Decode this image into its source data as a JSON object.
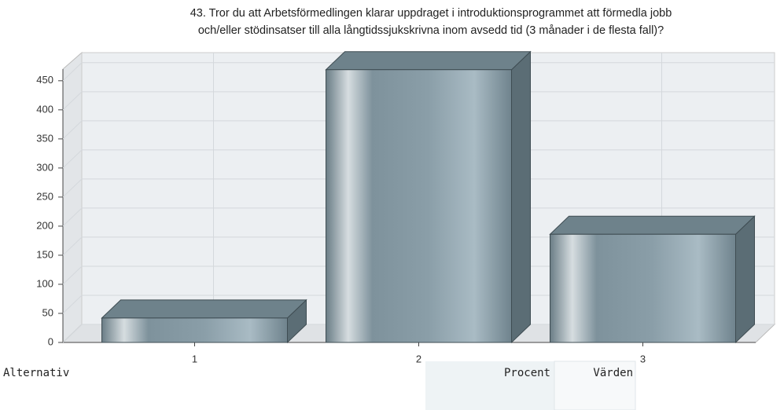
{
  "chart_data": {
    "type": "bar3d",
    "title": [
      "43. Tror du att Arbetsförmedlingen klarar uppdraget i introduktionsprogrammet att förmedla jobb",
      "och/eller stödinsatser till alla långtidssjukskrivna inom avsedd tid (3 månader i de flesta fall)?"
    ],
    "categories": [
      "1",
      "2",
      "3"
    ],
    "values": [
      42,
      469,
      186
    ],
    "color": "#7e929c",
    "ylim": [
      0,
      470
    ],
    "yticks": [
      0,
      50,
      100,
      150,
      200,
      250,
      300,
      350,
      400,
      450
    ],
    "grid": true
  },
  "table": {
    "headers": [
      "Alternativ",
      "Procent",
      "Värden"
    ]
  }
}
